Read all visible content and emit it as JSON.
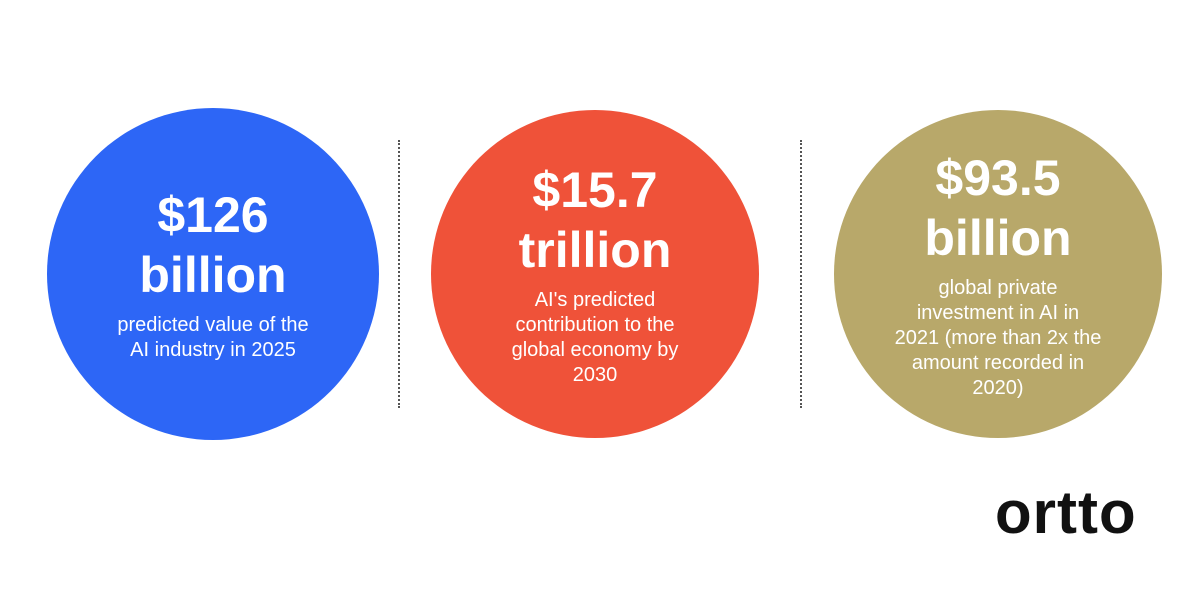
{
  "stats": [
    {
      "value_lines": [
        "$126",
        "billion"
      ],
      "description_lines": [
        "predicted value of the",
        "AI industry in 2025"
      ]
    },
    {
      "value_lines": [
        "$15.7",
        "trillion"
      ],
      "description_lines": [
        "AI's predicted",
        "contribution to the",
        "global economy by",
        "2030"
      ]
    },
    {
      "value_lines": [
        "$93.5",
        "billion"
      ],
      "description_lines": [
        "global private",
        "investment in AI in",
        "2021 (more than 2x the",
        "amount recorded in",
        "2020)"
      ]
    }
  ],
  "logo": "ortto"
}
